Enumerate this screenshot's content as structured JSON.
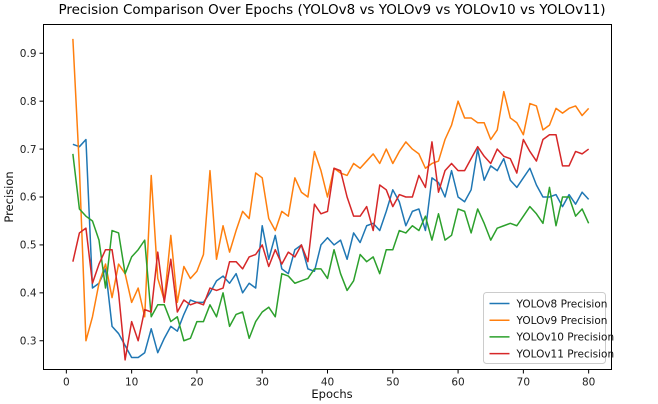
{
  "chart_data": {
    "type": "line",
    "title": "Precision Comparison Over Epochs (YOLOv8 vs YOLOv9 vs YOLOv10 vs YOLOv11)",
    "xlabel": "Epochs",
    "ylabel": "Precision",
    "xlim": [
      -3.5,
      83.5
    ],
    "ylim": [
      0.24,
      0.96
    ],
    "xticks": [
      0,
      10,
      20,
      30,
      40,
      50,
      60,
      70,
      80
    ],
    "yticks": [
      0.3,
      0.4,
      0.5,
      0.6,
      0.7,
      0.8,
      0.9
    ],
    "grid": false,
    "legend_position": "lower-right",
    "x": [
      1,
      2,
      3,
      4,
      5,
      6,
      7,
      8,
      9,
      10,
      11,
      12,
      13,
      14,
      15,
      16,
      17,
      18,
      19,
      20,
      21,
      22,
      23,
      24,
      25,
      26,
      27,
      28,
      29,
      30,
      31,
      32,
      33,
      34,
      35,
      36,
      37,
      38,
      39,
      40,
      41,
      42,
      43,
      44,
      45,
      46,
      47,
      48,
      49,
      50,
      51,
      52,
      53,
      54,
      55,
      56,
      57,
      58,
      59,
      60,
      61,
      62,
      63,
      64,
      65,
      66,
      67,
      68,
      69,
      70,
      71,
      72,
      73,
      74,
      75,
      76,
      77,
      78,
      79,
      80
    ],
    "series": [
      {
        "name": "YOLOv8 Precision",
        "color": "#1f77b4",
        "values": [
          0.71,
          0.705,
          0.72,
          0.41,
          0.42,
          0.45,
          0.33,
          0.315,
          0.29,
          0.265,
          0.265,
          0.275,
          0.325,
          0.275,
          0.305,
          0.33,
          0.32,
          0.355,
          0.385,
          0.38,
          0.38,
          0.4,
          0.425,
          0.435,
          0.42,
          0.44,
          0.4,
          0.42,
          0.41,
          0.54,
          0.47,
          0.52,
          0.45,
          0.44,
          0.49,
          0.5,
          0.45,
          0.445,
          0.5,
          0.515,
          0.5,
          0.51,
          0.47,
          0.525,
          0.505,
          0.54,
          0.545,
          0.53,
          0.57,
          0.615,
          0.59,
          0.54,
          0.57,
          0.575,
          0.53,
          0.64,
          0.63,
          0.6,
          0.655,
          0.6,
          0.59,
          0.615,
          0.7,
          0.635,
          0.665,
          0.655,
          0.68,
          0.635,
          0.62,
          0.64,
          0.66,
          0.625,
          0.6,
          0.6,
          0.605,
          0.58,
          0.605,
          0.585,
          0.61,
          0.595
        ]
      },
      {
        "name": "YOLOv9 Precision",
        "color": "#ff7f0e",
        "values": [
          0.93,
          0.66,
          0.3,
          0.35,
          0.42,
          0.46,
          0.39,
          0.46,
          0.44,
          0.38,
          0.41,
          0.35,
          0.645,
          0.43,
          0.385,
          0.52,
          0.38,
          0.455,
          0.43,
          0.445,
          0.48,
          0.655,
          0.47,
          0.54,
          0.485,
          0.53,
          0.57,
          0.555,
          0.65,
          0.64,
          0.555,
          0.53,
          0.57,
          0.56,
          0.64,
          0.61,
          0.6,
          0.695,
          0.655,
          0.6,
          0.66,
          0.65,
          0.645,
          0.67,
          0.66,
          0.675,
          0.69,
          0.67,
          0.7,
          0.67,
          0.695,
          0.715,
          0.7,
          0.69,
          0.66,
          0.67,
          0.675,
          0.72,
          0.75,
          0.8,
          0.765,
          0.765,
          0.755,
          0.755,
          0.72,
          0.74,
          0.82,
          0.765,
          0.755,
          0.73,
          0.795,
          0.79,
          0.74,
          0.75,
          0.785,
          0.775,
          0.785,
          0.79,
          0.77,
          0.785
        ]
      },
      {
        "name": "YOLOv10 Precision",
        "color": "#2ca02c",
        "values": [
          0.69,
          0.575,
          0.56,
          0.55,
          0.51,
          0.41,
          0.53,
          0.525,
          0.44,
          0.475,
          0.49,
          0.51,
          0.35,
          0.375,
          0.375,
          0.34,
          0.35,
          0.3,
          0.305,
          0.34,
          0.34,
          0.375,
          0.35,
          0.4,
          0.33,
          0.355,
          0.36,
          0.305,
          0.34,
          0.36,
          0.37,
          0.35,
          0.44,
          0.435,
          0.42,
          0.425,
          0.43,
          0.45,
          0.45,
          0.43,
          0.49,
          0.44,
          0.405,
          0.425,
          0.48,
          0.465,
          0.475,
          0.44,
          0.49,
          0.49,
          0.53,
          0.525,
          0.54,
          0.53,
          0.56,
          0.51,
          0.565,
          0.51,
          0.52,
          0.575,
          0.57,
          0.525,
          0.575,
          0.545,
          0.51,
          0.535,
          0.54,
          0.545,
          0.54,
          0.56,
          0.58,
          0.565,
          0.545,
          0.62,
          0.54,
          0.6,
          0.6,
          0.56,
          0.575,
          0.545
        ]
      },
      {
        "name": "YOLOv11 Precision",
        "color": "#d62728",
        "values": [
          0.465,
          0.525,
          0.535,
          0.42,
          0.46,
          0.49,
          0.49,
          0.4,
          0.26,
          0.34,
          0.3,
          0.365,
          0.36,
          0.485,
          0.38,
          0.47,
          0.36,
          0.385,
          0.375,
          0.38,
          0.375,
          0.41,
          0.405,
          0.41,
          0.465,
          0.465,
          0.45,
          0.475,
          0.48,
          0.5,
          0.455,
          0.49,
          0.46,
          0.485,
          0.475,
          0.5,
          0.465,
          0.585,
          0.565,
          0.57,
          0.66,
          0.655,
          0.6,
          0.56,
          0.56,
          0.58,
          0.53,
          0.625,
          0.615,
          0.58,
          0.605,
          0.6,
          0.6,
          0.645,
          0.62,
          0.715,
          0.61,
          0.655,
          0.67,
          0.655,
          0.655,
          0.68,
          0.705,
          0.685,
          0.67,
          0.7,
          0.685,
          0.68,
          0.65,
          0.72,
          0.695,
          0.675,
          0.72,
          0.73,
          0.73,
          0.665,
          0.665,
          0.695,
          0.69,
          0.7
        ]
      }
    ]
  }
}
